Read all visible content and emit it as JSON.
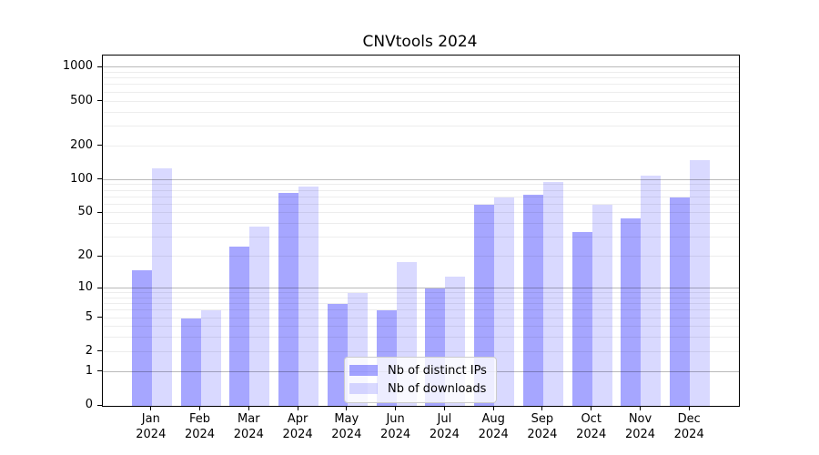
{
  "chart_data": {
    "type": "bar",
    "title": "CNVtools 2024",
    "categories": [
      "Jan",
      "Feb",
      "Mar",
      "Apr",
      "May",
      "Jun",
      "Jul",
      "Aug",
      "Sep",
      "Oct",
      "Nov",
      "Dec"
    ],
    "year_label": "2024",
    "series": [
      {
        "key": "ips",
        "name": "Nb of distinct IPs",
        "color": "rgba(0,0,255,0.35)",
        "values": [
          15,
          5,
          25,
          77,
          7,
          6,
          10,
          60,
          73,
          34,
          45,
          70
        ]
      },
      {
        "key": "downloads",
        "name": "Nb of downloads",
        "color": "rgba(0,0,255,0.15)",
        "values": [
          127,
          6,
          38,
          88,
          9,
          18,
          13,
          70,
          95,
          60,
          110,
          150
        ]
      }
    ],
    "yscale": "log1p",
    "ylim": [
      0,
      1280
    ],
    "yticks": [
      0,
      1,
      2,
      5,
      10,
      20,
      50,
      100,
      200,
      500,
      1000
    ],
    "major_gridlines": [
      1,
      10,
      100,
      1000
    ],
    "minor_gridlines": [
      2,
      3,
      4,
      5,
      6,
      7,
      8,
      9,
      20,
      30,
      40,
      50,
      60,
      70,
      80,
      90,
      200,
      300,
      400,
      500,
      600,
      700,
      800,
      900
    ],
    "grid": true,
    "legend_position": "lower center",
    "colors": {
      "axis": "#000000",
      "major_grid": "#b9b9b9",
      "minor_grid": "#ececec",
      "background": "#ffffff"
    }
  }
}
